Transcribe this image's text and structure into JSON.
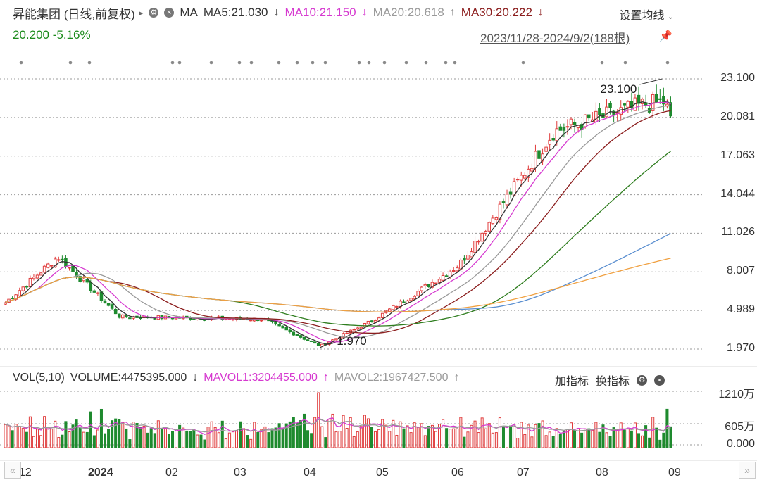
{
  "header": {
    "title": "昇能集团 (日线,前复权)",
    "ma_label": "MA",
    "ma5": "MA5:21.030",
    "ma10": "MA10:21.150",
    "ma20": "MA20:20.618",
    "ma30": "MA30:20.222",
    "settings": "设置均线",
    "price_change": "20.200 -5.16%",
    "date_range": "2023/11/28-2024/9/2(188根)"
  },
  "volume_header": {
    "vol": "VOL(5,10)",
    "volume": "VOLUME:4475395.000",
    "mavol1": "MAVOL1:3204455.000",
    "mavol2": "MAVOL2:1967427.500",
    "add_indicator": "加指标",
    "switch_indicator": "换指标"
  },
  "colors": {
    "up": "#e03c3c",
    "down": "#1e8a2e",
    "ma5": "#333333",
    "ma10": "#d63ad0",
    "ma20": "#9a9a9a",
    "ma30": "#8b1d1d",
    "ma60": "#2e7d1e",
    "ma120": "#5b8fd0",
    "ma250": "#f0a040"
  },
  "chart_data": {
    "type": "candlestick",
    "y_ticks": [
      "23.100",
      "20.081",
      "17.063",
      "14.044",
      "11.026",
      "8.007",
      "4.989",
      "1.970"
    ],
    "ylim": [
      1.97,
      23.1
    ],
    "x_ticks": [
      "12",
      "2024",
      "02",
      "03",
      "04",
      "05",
      "06",
      "07",
      "08",
      "09"
    ],
    "annotations": [
      {
        "label": "23.100",
        "type": "high"
      },
      {
        "label": "1.970",
        "type": "low"
      }
    ],
    "last_close": 20.2,
    "change_pct": -5.16,
    "bars": 188,
    "key_points": [
      {
        "date": "2023-11-28",
        "close": 5.6
      },
      {
        "date": "2023-12-20",
        "close": 9.2
      },
      {
        "date": "2024-01-15",
        "close": 4.5
      },
      {
        "date": "2024-03-15",
        "close": 4.3
      },
      {
        "date": "2024-04-08",
        "close": 2.2
      },
      {
        "date": "2024-04-30",
        "close": 4.2
      },
      {
        "date": "2024-06-05",
        "close": 8.5
      },
      {
        "date": "2024-07-15",
        "close": 19.0
      },
      {
        "date": "2024-08-20",
        "close": 21.0
      },
      {
        "date": "2024-08-30",
        "close": 21.3
      },
      {
        "date": "2024-09-02",
        "close": 20.2
      }
    ],
    "volume": {
      "y_ticks": [
        "1210万",
        "605万",
        "0.000"
      ],
      "last_volume": 4475395,
      "mavol1": 3204455,
      "mavol2": 1967427.5
    }
  }
}
